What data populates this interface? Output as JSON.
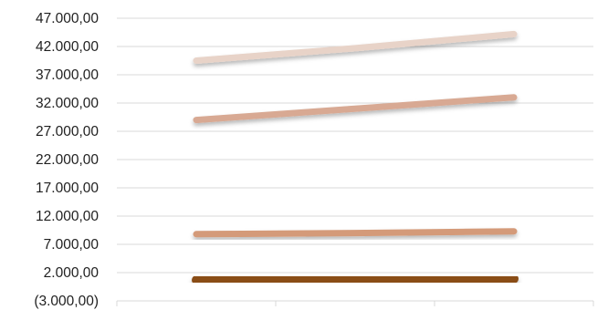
{
  "chart_data": {
    "type": "line",
    "title": "",
    "xlabel": "",
    "ylabel": "",
    "x": [
      1,
      2,
      3
    ],
    "ylim": [
      -3000,
      47000
    ],
    "yticks": [
      -3000,
      2000,
      7000,
      12000,
      17000,
      22000,
      27000,
      32000,
      37000,
      42000,
      47000
    ],
    "ytick_labels": [
      "(3.000,00)",
      "2.000,00",
      "7.000,00",
      "12.000,00",
      "17.000,00",
      "22.000,00",
      "27.000,00",
      "32.000,00",
      "37.000,00",
      "42.000,00",
      "47.000,00"
    ],
    "grid": true,
    "legend": "none",
    "series": [
      {
        "values": [
          39500,
          41700,
          44200
        ],
        "color": "#e8d3c8"
      },
      {
        "values": [
          29000,
          31000,
          33000
        ],
        "color": "#d8a993"
      },
      {
        "values": [
          8800,
          9000,
          9300
        ],
        "color": "#d49a79"
      },
      {
        "values": [
          700,
          800,
          900
        ],
        "color": "#8a4d18"
      }
    ]
  }
}
